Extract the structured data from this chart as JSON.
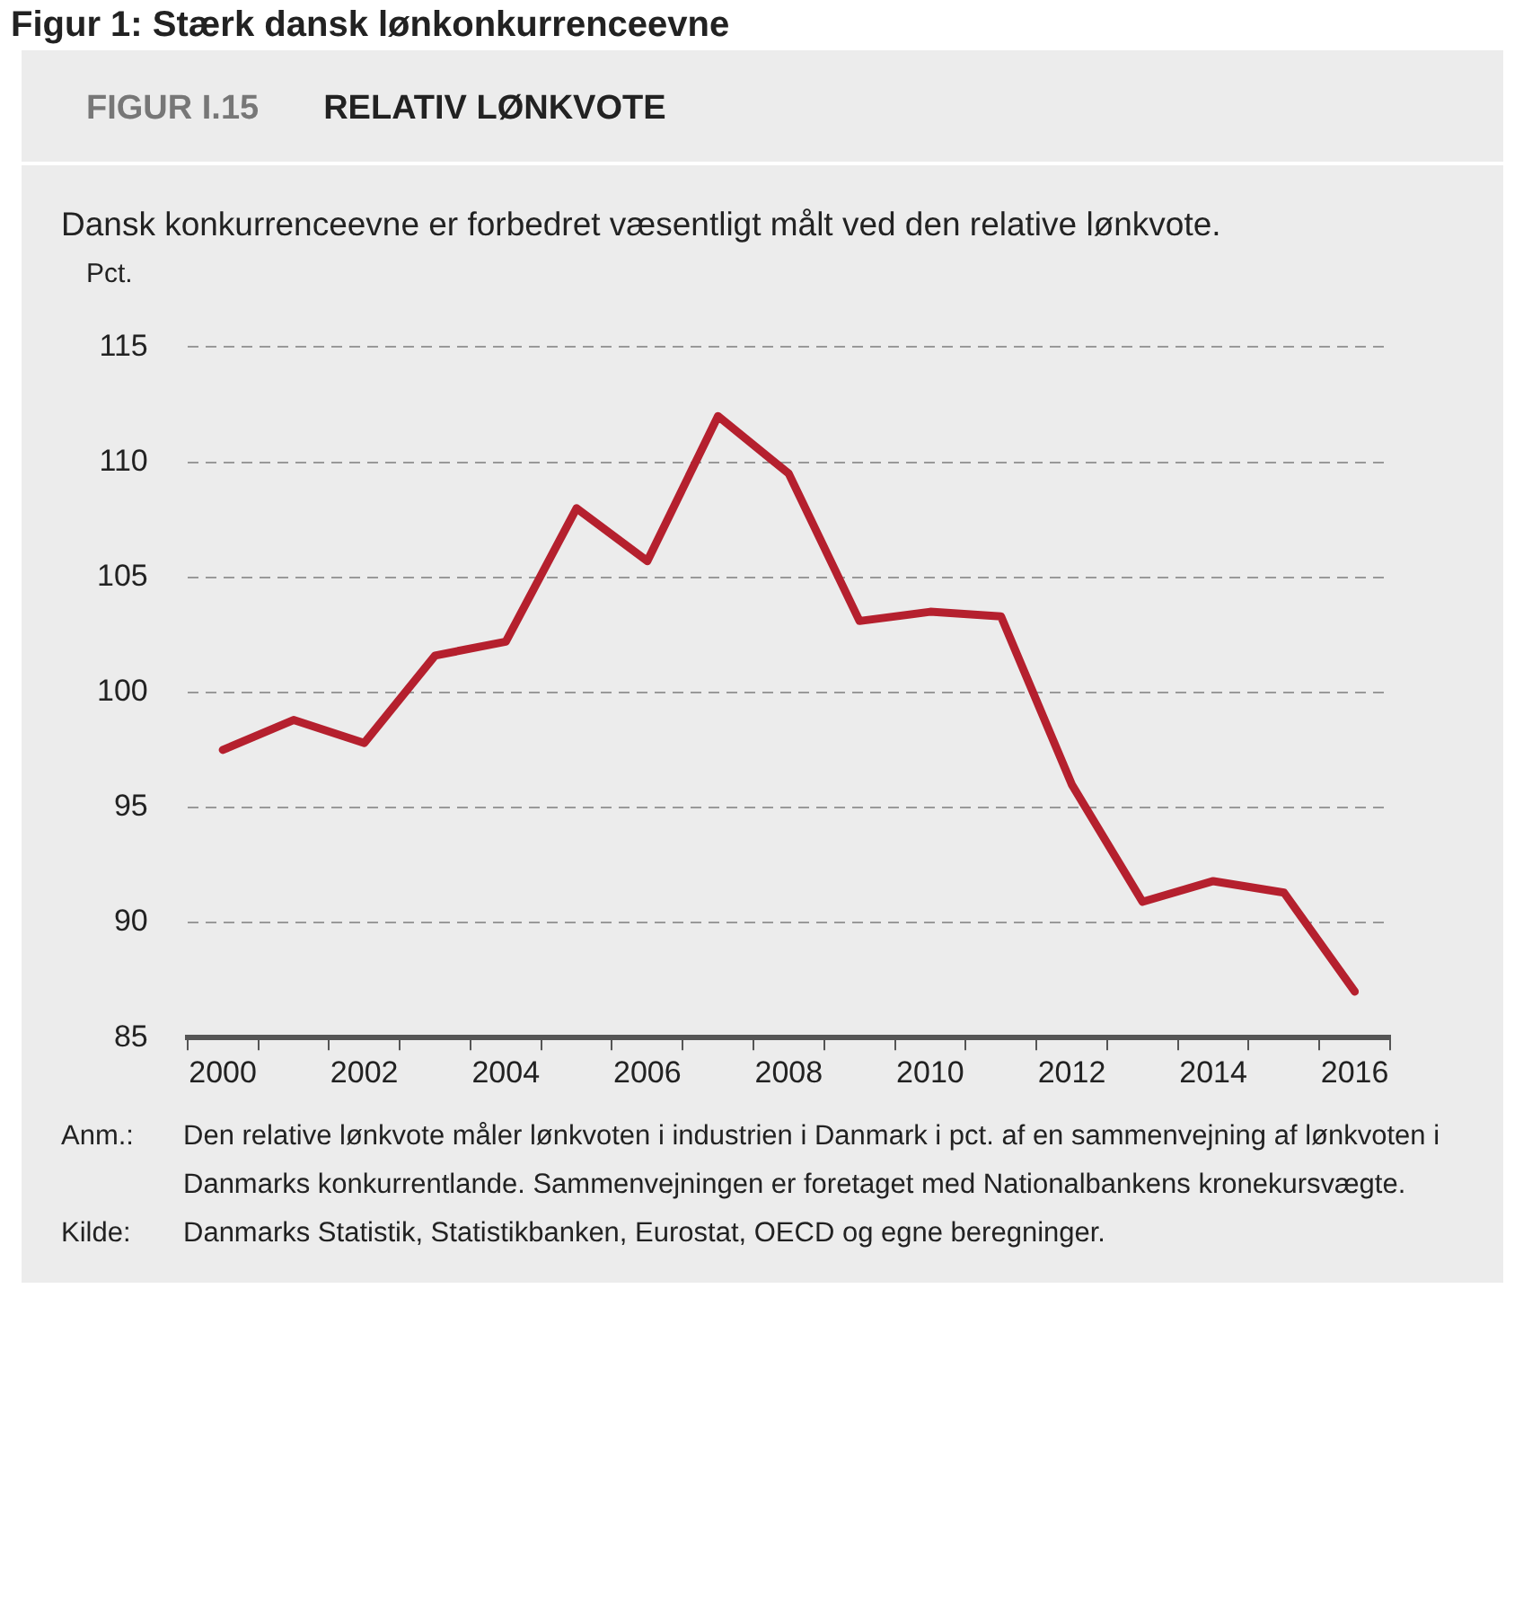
{
  "chart_data": {
    "type": "line",
    "title": "RELATIV LØNKVOTE",
    "subtitle": "Dansk konkurrenceevne er forbedret væsentligt målt ved den relative lønkvote.",
    "ylabel": "Pct.",
    "annotations": [
      "Figur 1: Stærk dansk lønkonkurrenceevne",
      "FIGUR I.15",
      "Anm.: Den relative lønkvote måler lønkvoten i industrien i Danmark i pct. af en sammenvejning af lønkvoten i Danmarks konkurrentlande. Sammenvejningen er foretaget med Nationalbankens kronekursvægte.",
      "Kilde: Danmarks Statistik, Statistikbanken, Eurostat, OECD og egne beregninger."
    ],
    "categories": [
      "2000",
      null,
      "2002",
      null,
      "2004",
      null,
      "2006",
      null,
      "2008",
      null,
      "2010",
      null,
      "2012",
      null,
      "2014",
      null,
      "2016"
    ],
    "series": [
      {
        "color": "#b5202e",
        "values": [
          97.5,
          98.8,
          97.8,
          101.6,
          102.2,
          108,
          105.7,
          112,
          109.5,
          103.1,
          103.5,
          103.3,
          96,
          90.9,
          91.8,
          91.3,
          87
        ]
      }
    ],
    "ylim": [
      85,
      115
    ],
    "yticks": [
      85,
      90,
      95,
      100,
      105,
      110,
      115
    ],
    "grid": "y",
    "legend": false,
    "marker": "none",
    "line_style": "solid"
  }
}
